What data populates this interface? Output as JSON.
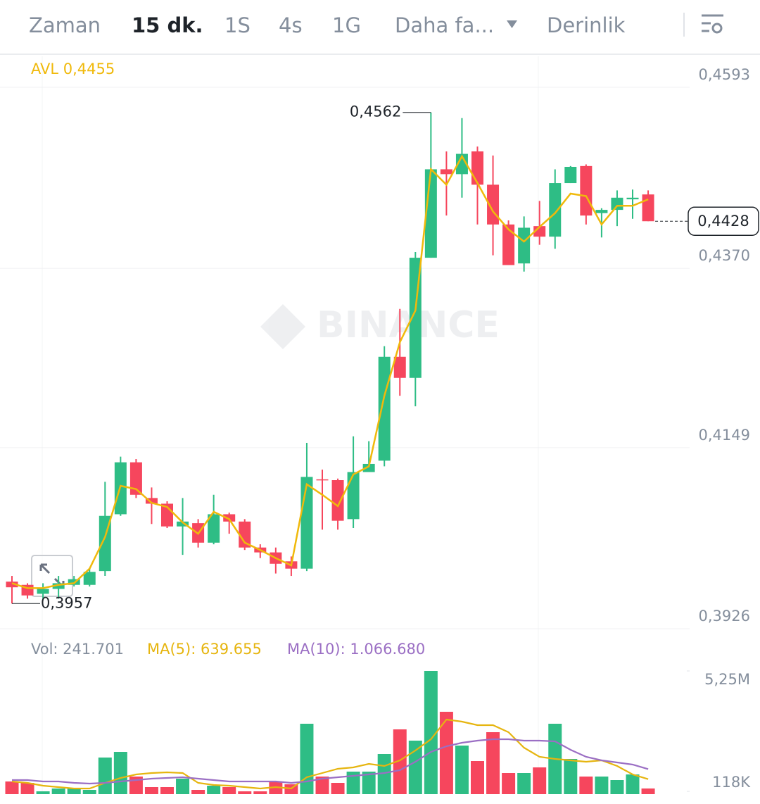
{
  "header": {
    "tabs": [
      "Zaman",
      "15 dk.",
      "1S",
      "4s",
      "1G"
    ],
    "more": "Daha fa...",
    "depth": "Derinlik"
  },
  "watermark": "BINANCE",
  "chart_data": [
    {
      "type": "candlestick",
      "up_color": "#2ebd85",
      "down_color": "#f6465d",
      "ylim": [
        0.3926,
        0.4593
      ],
      "yticks": [
        {
          "value": 0.4593,
          "label": "0,4593"
        },
        {
          "value": 0.437,
          "label": "0,4370"
        },
        {
          "value": 0.4149,
          "label": "0,4149"
        },
        {
          "value": 0.3926,
          "label": "0,3926"
        }
      ],
      "grid": true,
      "open": [
        0.3984,
        0.398,
        0.3969,
        0.3975,
        0.398,
        0.398,
        0.3997,
        0.4067,
        0.4131,
        0.4087,
        0.408,
        0.4052,
        0.4056,
        0.4032,
        0.4067,
        0.4058,
        0.4026,
        0.402,
        0.4009,
        0.4,
        0.411,
        0.4109,
        0.4061,
        0.4119,
        0.4133,
        0.4261,
        0.4235,
        0.4383,
        0.4492,
        0.4486,
        0.4514,
        0.4473,
        0.4424,
        0.4376,
        0.4422,
        0.4409,
        0.4475,
        0.4496,
        0.4438,
        0.4442,
        0.4455,
        0.4461
      ],
      "high": [
        0.3991,
        0.3982,
        0.3982,
        0.3991,
        0.3991,
        0.4,
        0.4107,
        0.4138,
        0.4135,
        0.41,
        0.4083,
        0.4087,
        0.4061,
        0.4091,
        0.4069,
        0.4061,
        0.403,
        0.4026,
        0.4015,
        0.4155,
        0.4122,
        0.4111,
        0.4163,
        0.4157,
        0.4274,
        0.432,
        0.439,
        0.4562,
        0.4514,
        0.4555,
        0.452,
        0.4509,
        0.4429,
        0.4434,
        0.4453,
        0.4492,
        0.4496,
        0.4498,
        0.4444,
        0.4466,
        0.4467,
        0.4466
      ],
      "low": [
        0.3957,
        0.3963,
        0.3963,
        0.3963,
        0.3978,
        0.3978,
        0.3991,
        0.4065,
        0.4087,
        0.4055,
        0.405,
        0.4017,
        0.4026,
        0.403,
        0.4043,
        0.4023,
        0.4013,
        0.3994,
        0.3991,
        0.3997,
        0.4048,
        0.4048,
        0.405,
        0.4119,
        0.4126,
        0.4213,
        0.42,
        0.4383,
        0.4435,
        0.4457,
        0.4424,
        0.4386,
        0.4374,
        0.4366,
        0.4399,
        0.4394,
        0.4475,
        0.4424,
        0.4408,
        0.4422,
        0.4431,
        0.4428
      ],
      "close": [
        0.3977,
        0.3967,
        0.3975,
        0.3982,
        0.3987,
        0.3996,
        0.4065,
        0.4131,
        0.4091,
        0.408,
        0.4052,
        0.4058,
        0.4032,
        0.4067,
        0.4058,
        0.4026,
        0.402,
        0.4006,
        0.4,
        0.4113,
        0.4109,
        0.4059,
        0.4119,
        0.4129,
        0.4261,
        0.4235,
        0.4383,
        0.4492,
        0.4486,
        0.4511,
        0.4473,
        0.4424,
        0.4374,
        0.442,
        0.4409,
        0.4475,
        0.4495,
        0.4435,
        0.4442,
        0.4457,
        0.4457,
        0.4428
      ],
      "series": [
        {
          "label": "AVL 0,4455",
          "color": "#f0b90b",
          "values": [
            0.3982,
            0.3976,
            0.3976,
            0.398,
            0.3982,
            0.4,
            0.4039,
            0.4102,
            0.4098,
            0.4081,
            0.4076,
            0.4057,
            0.4043,
            0.407,
            0.4061,
            0.4032,
            0.4023,
            0.4013,
            0.4004,
            0.4104,
            0.4091,
            0.4077,
            0.4116,
            0.4126,
            0.4213,
            0.4279,
            0.4318,
            0.4492,
            0.4473,
            0.4508,
            0.4475,
            0.444,
            0.4418,
            0.4403,
            0.4421,
            0.4438,
            0.4462,
            0.4459,
            0.4424,
            0.4447,
            0.4447,
            0.4455
          ]
        }
      ],
      "annotations": [
        {
          "kind": "high",
          "value": 0.4562,
          "label": "0,4562"
        },
        {
          "kind": "low",
          "value": 0.3957,
          "label": "0,3957"
        },
        {
          "kind": "last",
          "value": 0.4428,
          "label": "0,4428"
        }
      ]
    },
    {
      "type": "volume",
      "label": "Vol: 241.701",
      "up_color": "#2ebd85",
      "down_color": "#f6465d",
      "ylim": [
        0,
        5250000
      ],
      "yticks": [
        {
          "value": 5250000,
          "label": "5,25M"
        },
        {
          "value": 118000,
          "label": "118K"
        }
      ],
      "values": [
        540000,
        480000,
        120000,
        240000,
        240000,
        180000,
        1560000,
        1800000,
        750000,
        300000,
        300000,
        660000,
        180000,
        360000,
        300000,
        120000,
        120000,
        540000,
        420000,
        3000000,
        750000,
        480000,
        960000,
        960000,
        1710000,
        2760000,
        2280000,
        5250000,
        3510000,
        2070000,
        1410000,
        2640000,
        900000,
        900000,
        1140000,
        3000000,
        1500000,
        750000,
        750000,
        600000,
        840000,
        241701
      ],
      "series": [
        {
          "label": "MA(5): 639.655",
          "color": "#e6b50f",
          "values": [
            540000,
            480000,
            360000,
            300000,
            240000,
            240000,
            480000,
            690000,
            840000,
            900000,
            930000,
            900000,
            480000,
            390000,
            360000,
            300000,
            240000,
            300000,
            240000,
            720000,
            900000,
            1080000,
            1140000,
            1290000,
            1200000,
            1440000,
            1860000,
            2340000,
            3180000,
            3090000,
            2940000,
            2940000,
            2640000,
            1980000,
            1590000,
            1500000,
            1440000,
            1380000,
            1440000,
            1200000,
            840000,
            639655
          ]
        },
        {
          "label": "MA(10): 1.066.680",
          "color": "#9b6fc4",
          "values": [
            600000,
            600000,
            540000,
            540000,
            480000,
            450000,
            480000,
            540000,
            600000,
            660000,
            690000,
            720000,
            660000,
            600000,
            540000,
            540000,
            540000,
            540000,
            480000,
            540000,
            660000,
            720000,
            780000,
            840000,
            900000,
            1020000,
            1380000,
            1800000,
            2040000,
            2190000,
            2280000,
            2340000,
            2340000,
            2280000,
            2280000,
            2250000,
            1890000,
            1590000,
            1440000,
            1350000,
            1260000,
            1066680
          ]
        }
      ]
    }
  ]
}
